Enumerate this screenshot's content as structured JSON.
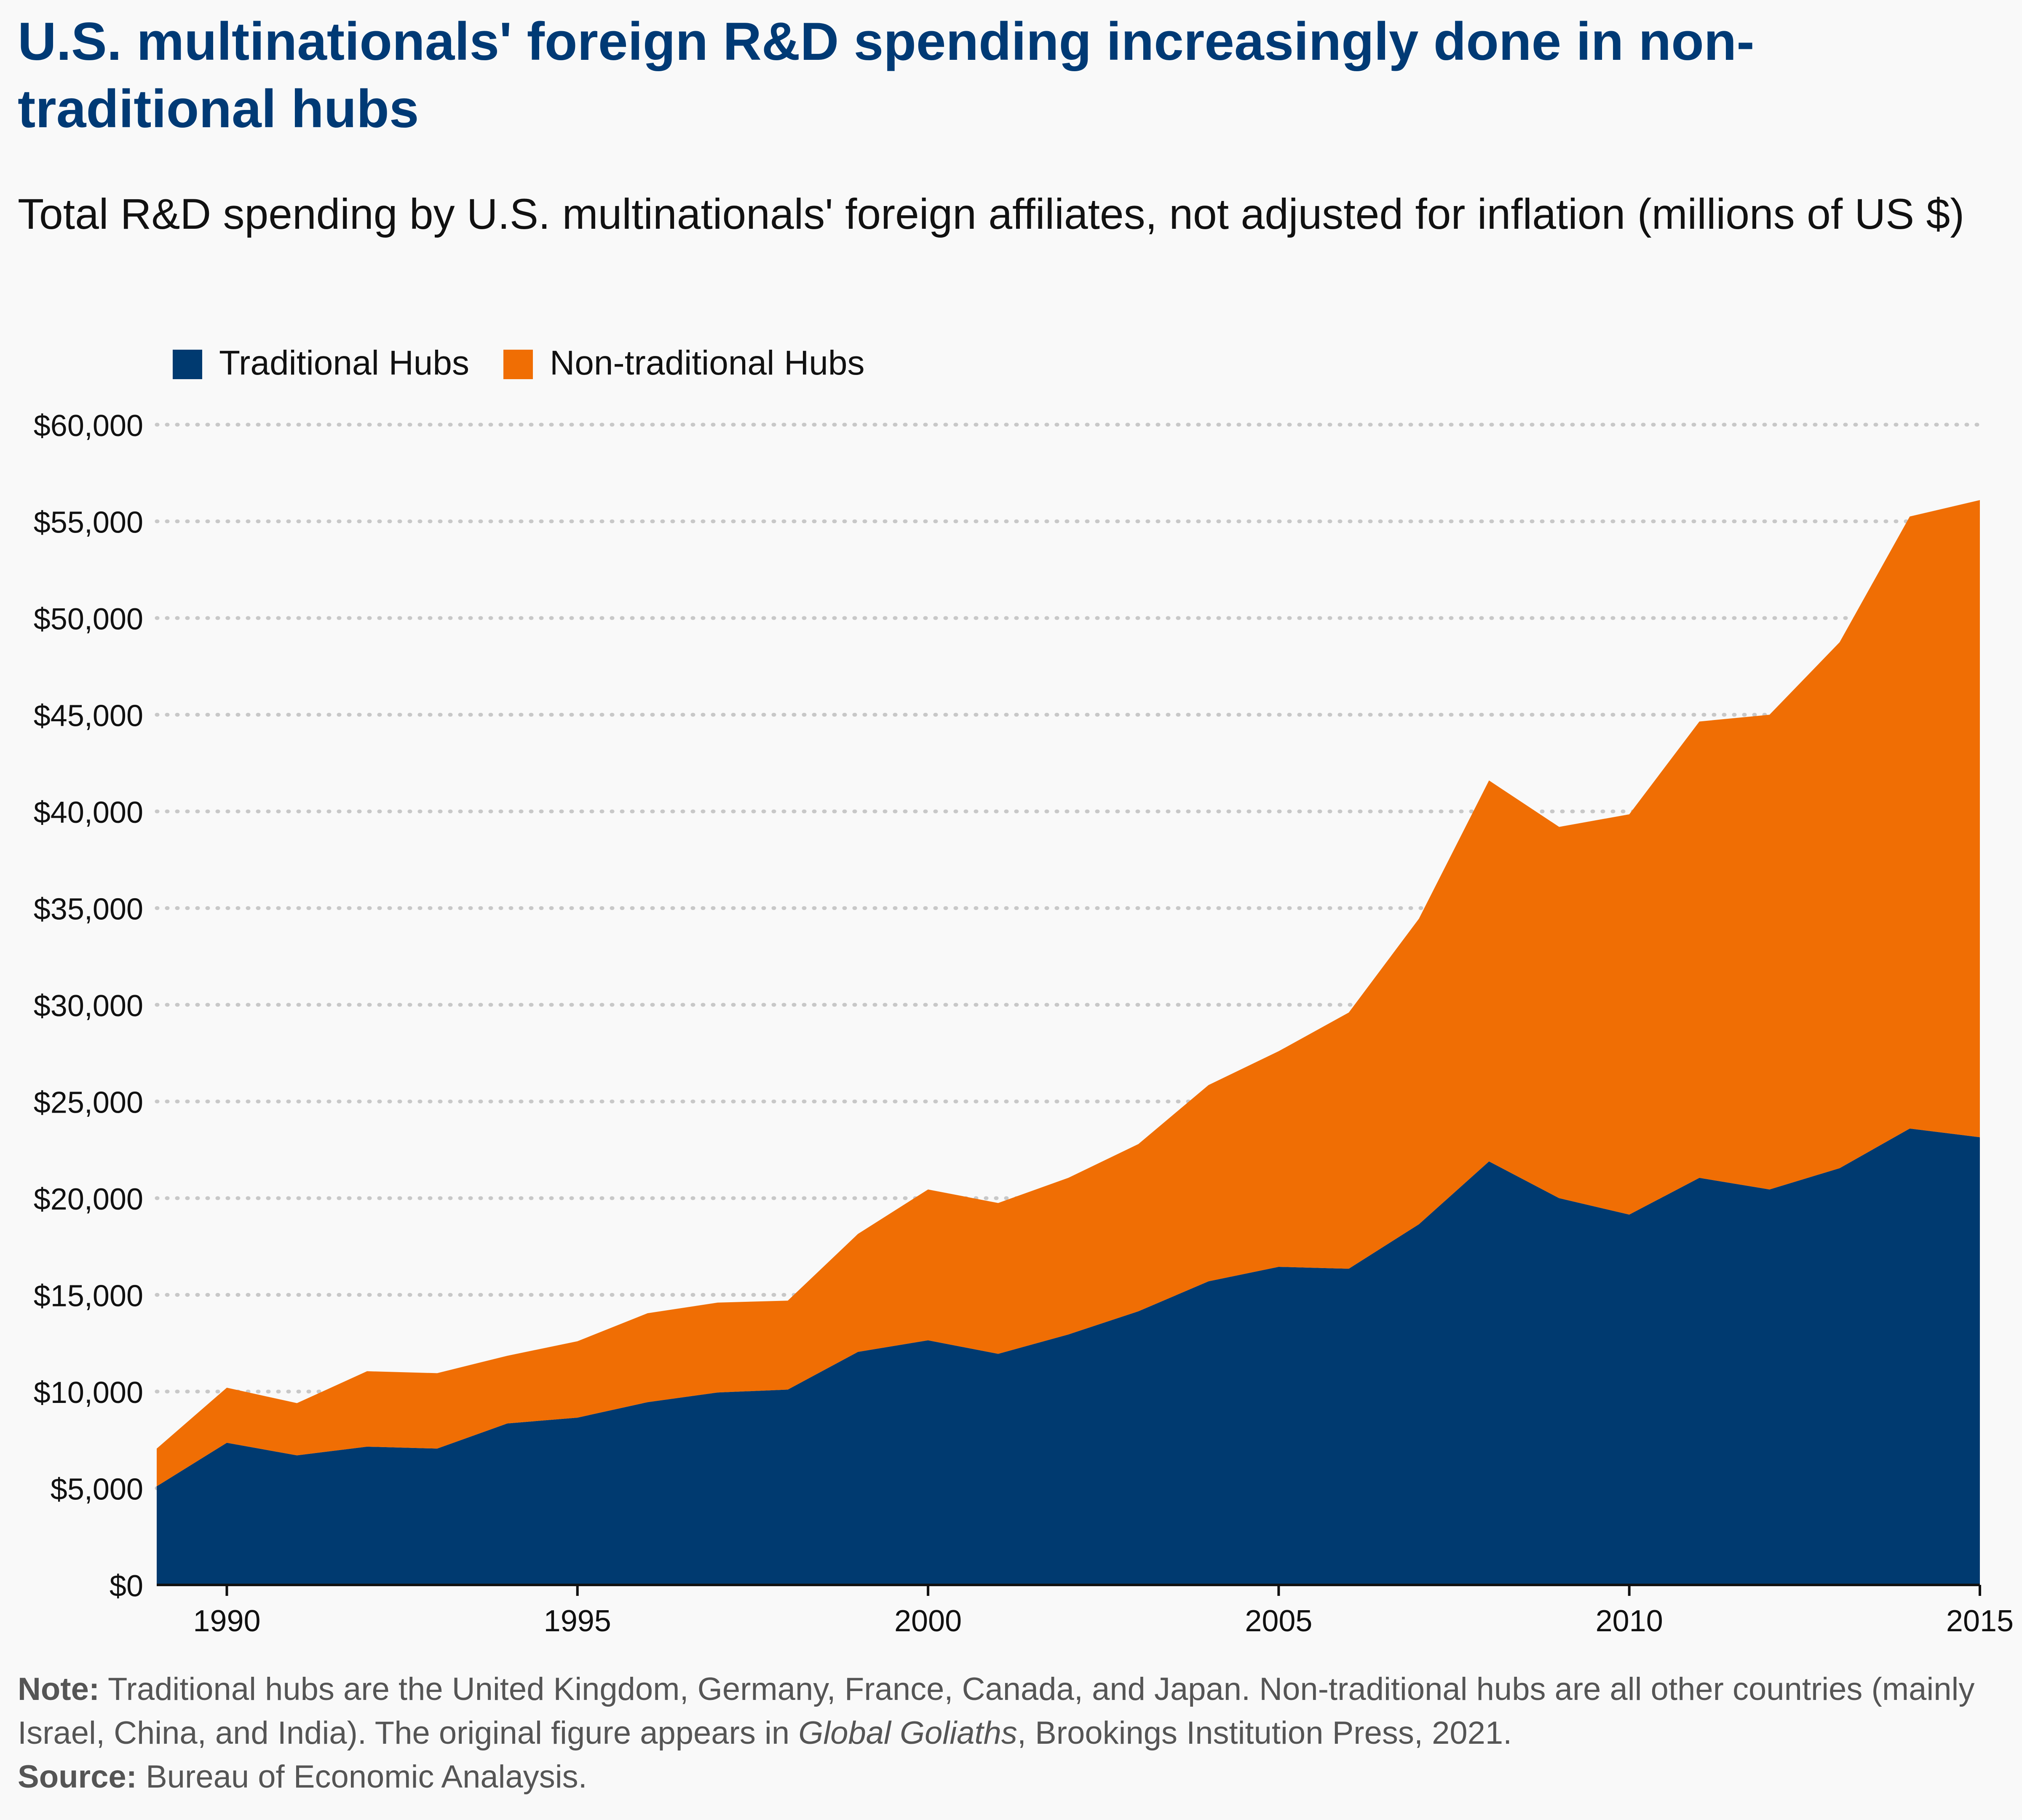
{
  "title": "U.S. multinationals' foreign R&D spending increasingly done in non-traditional hubs",
  "subtitle": "Total R&D spending by U.S. multinationals' foreign affiliates, not adjusted for inflation (millions of US $)",
  "footer": {
    "note_label": "Note:",
    "note_text_1": "Traditional hubs are the United Kingdom, Germany, France, Canada, and Japan. Non-traditional hubs are all other countries (mainly Israel, China, and India). The original figure appears in ",
    "note_italic": "Global Goliaths",
    "note_text_2": ", Brookings Institution Press, 2021.",
    "source_label": "Source:",
    "source_text": "Bureau of Economic Analaysis."
  },
  "colors": {
    "traditional": "#003a70",
    "non_traditional": "#f06e04",
    "grid": "#c8c8c8",
    "title": "#003a75"
  },
  "chart_data": {
    "type": "area",
    "stacked": true,
    "x": [
      1989,
      1990,
      1991,
      1992,
      1993,
      1994,
      1995,
      1996,
      1997,
      1998,
      1999,
      2000,
      2001,
      2002,
      2003,
      2004,
      2005,
      2006,
      2007,
      2008,
      2009,
      2010,
      2011,
      2012,
      2013,
      2014,
      2015
    ],
    "series": [
      {
        "name": "Traditional Hubs",
        "color": "#003a70",
        "values": [
          5100,
          7350,
          6700,
          7150,
          7050,
          8350,
          8650,
          9450,
          9950,
          10100,
          12050,
          12650,
          11950,
          12950,
          14150,
          15700,
          16450,
          16350,
          18650,
          21900,
          20000,
          19150,
          21050,
          20450,
          21550,
          23600,
          23150
        ]
      },
      {
        "name": "Non-traditional Hubs",
        "color": "#f06e04",
        "values": [
          1950,
          2850,
          2700,
          3900,
          3900,
          3500,
          3950,
          4600,
          4650,
          4600,
          6100,
          7800,
          7800,
          8100,
          8650,
          10150,
          11150,
          13250,
          15800,
          19700,
          19200,
          20700,
          23600,
          24550,
          27200,
          31650,
          32950
        ]
      }
    ],
    "xticks": [
      1990,
      1995,
      2000,
      2005,
      2010,
      2015
    ],
    "ytick_labels": [
      "$0",
      "$5,000",
      "$10,000",
      "$15,000",
      "$20,000",
      "$25,000",
      "$30,000",
      "$35,000",
      "$40,000",
      "$45,000",
      "$50,000",
      "$55,000",
      "$60,000"
    ],
    "xlim": [
      1989,
      2015
    ],
    "ylim": [
      0,
      60000
    ],
    "ystep": 5000,
    "grid": "horizontal dotted",
    "legend_position": "top-left"
  }
}
